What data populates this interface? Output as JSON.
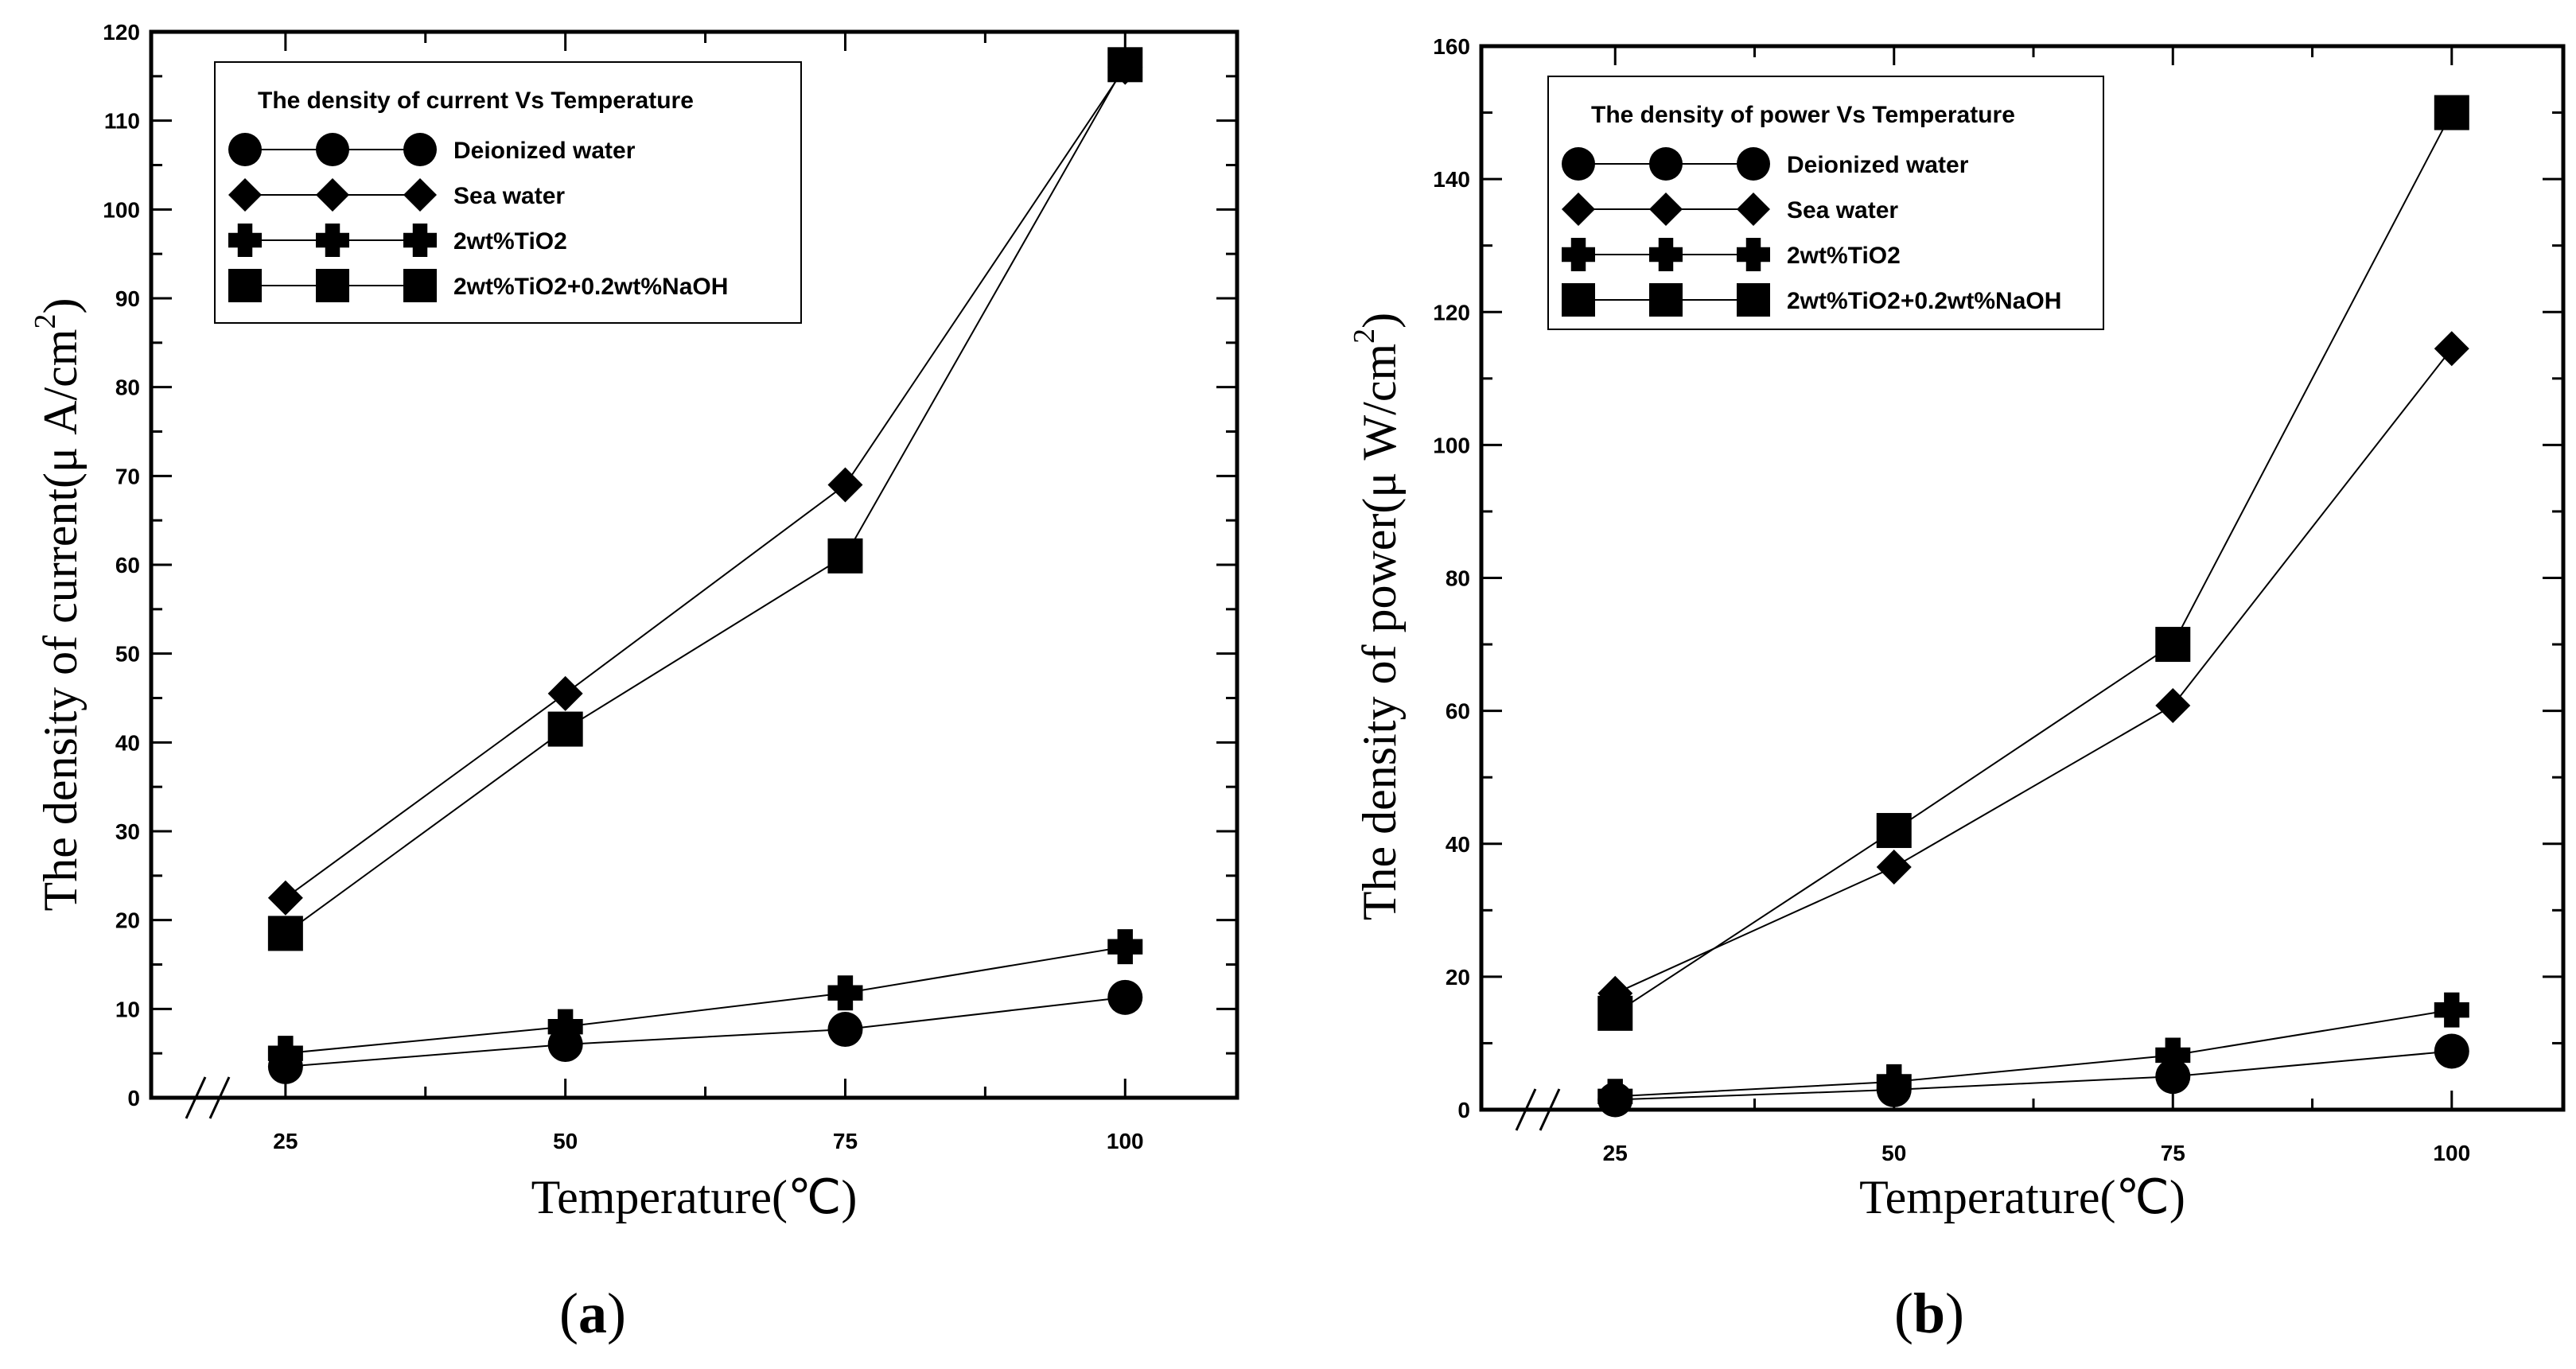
{
  "chart_data": [
    {
      "type": "line",
      "panel_label": "a",
      "legend_title": "The density of current  Vs Temperature",
      "xlabel": "Temperature(℃)",
      "ylabel_main": "The density of current(μ A/cm",
      "ylabel_sup": "2",
      "ylabel_end": ")",
      "x": [
        25,
        50,
        75,
        100
      ],
      "x_tick_labels": [
        "25",
        "50",
        "75",
        "100"
      ],
      "y_tick_labels": [
        "0",
        "10",
        "20",
        "30",
        "40",
        "50",
        "60",
        "70",
        "80",
        "90",
        "100",
        "110",
        "120"
      ],
      "xlim": [
        13,
        110
      ],
      "ylim": [
        0,
        120
      ],
      "grid": false,
      "legend_position": "top-left",
      "series": [
        {
          "name": "Deionized water",
          "marker": "circle",
          "values": [
            3.5,
            6,
            7.7,
            11.3
          ]
        },
        {
          "name": "Sea water",
          "marker": "diamond",
          "values": [
            22.5,
            45.5,
            69,
            116
          ]
        },
        {
          "name": "2wt%TiO2",
          "marker": "plus",
          "values": [
            5,
            8,
            11.8,
            17
          ]
        },
        {
          "name": "2wt%TiO2+0.2wt%NaOH",
          "marker": "square",
          "values": [
            18.5,
            41.5,
            61,
            116.3
          ]
        }
      ]
    },
    {
      "type": "line",
      "panel_label": "b",
      "legend_title": "The density of power  Vs Temperature",
      "xlabel": "Temperature(℃)",
      "ylabel_main": "The density of power(μ W/cm",
      "ylabel_sup": "2",
      "ylabel_end": ")",
      "x": [
        25,
        50,
        75,
        100
      ],
      "x_tick_labels": [
        "25",
        "50",
        "75",
        "100"
      ],
      "y_tick_labels": [
        "0",
        "20",
        "40",
        "60",
        "80",
        "100",
        "120",
        "140",
        "160"
      ],
      "xlim": [
        13,
        110
      ],
      "ylim": [
        0,
        160
      ],
      "grid": false,
      "legend_position": "top-left",
      "series": [
        {
          "name": "Deionized water",
          "marker": "circle",
          "values": [
            1.5,
            3,
            5,
            8.8
          ]
        },
        {
          "name": "Sea water",
          "marker": "diamond",
          "values": [
            17.5,
            36.5,
            60.8,
            114.5
          ]
        },
        {
          "name": "2wt%TiO2",
          "marker": "plus",
          "values": [
            2,
            4.2,
            8.2,
            15
          ]
        },
        {
          "name": "2wt%TiO2+0.2wt%NaOH",
          "marker": "square",
          "values": [
            14.5,
            42,
            70,
            150
          ]
        }
      ]
    }
  ]
}
